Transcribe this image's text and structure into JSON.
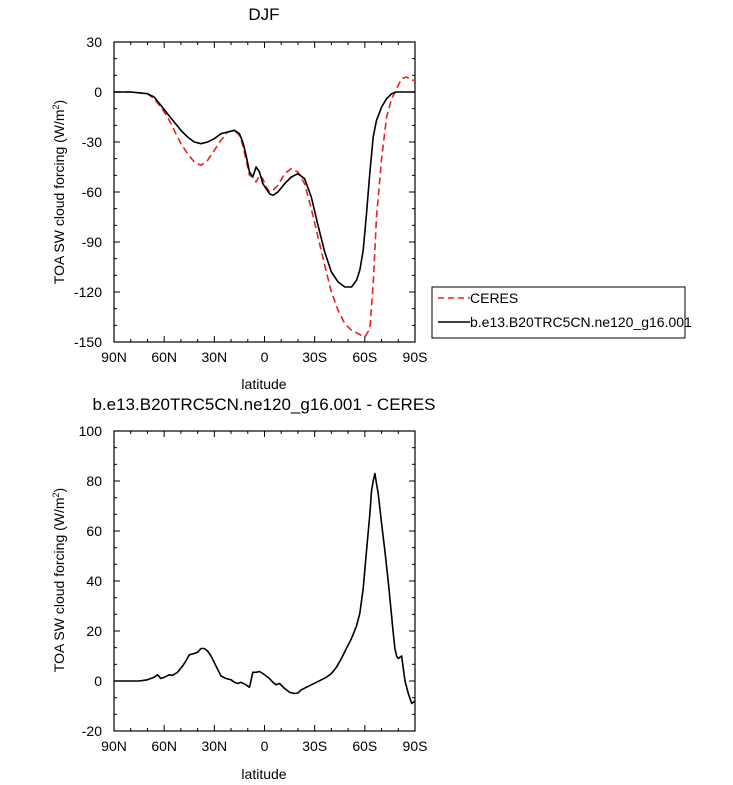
{
  "chart_data": [
    {
      "type": "line",
      "title": "DJF",
      "xlabel": "latitude",
      "ylabel": "TOA SW cloud forcing (W/m²)",
      "xlim": [
        -90,
        90
      ],
      "ylim": [
        -150,
        30
      ],
      "x_ticks": [
        -90,
        -60,
        -30,
        0,
        30,
        60,
        90
      ],
      "x_tick_labels": [
        "90N",
        "60N",
        "30N",
        "0",
        "30S",
        "60S",
        "90S"
      ],
      "y_ticks": [
        30,
        0,
        -30,
        -60,
        -90,
        -120,
        -150
      ],
      "y_tick_labels": [
        "30",
        "0",
        "-30",
        "-60",
        "-90",
        "-120",
        "-150"
      ],
      "legend": {
        "placement": "outside-right"
      },
      "series": [
        {
          "name": "CERES",
          "color": "#e8221f",
          "dash": "dashed",
          "x": [
            -90,
            -80,
            -70,
            -66,
            -62,
            -58,
            -54,
            -50,
            -46,
            -42,
            -38,
            -34,
            -30,
            -26,
            -22,
            -18,
            -15,
            -13,
            -11,
            -9,
            -7,
            -5,
            -3,
            -1,
            1,
            3,
            5,
            8,
            12,
            16,
            20,
            24,
            28,
            32,
            36,
            40,
            44,
            48,
            52,
            56,
            60,
            63,
            65,
            67,
            70,
            73,
            76,
            79,
            82,
            85,
            88,
            90
          ],
          "y": [
            0,
            0,
            -1,
            -4,
            -9,
            -15,
            -23,
            -31,
            -37,
            -42,
            -44,
            -41,
            -35,
            -29,
            -24,
            -23,
            -26,
            -32,
            -41,
            -50,
            -51,
            -54,
            -50,
            -52,
            -57,
            -60,
            -59,
            -56,
            -49,
            -46,
            -48,
            -55,
            -70,
            -87,
            -104,
            -120,
            -131,
            -139,
            -143,
            -145,
            -147,
            -142,
            -115,
            -75,
            -40,
            -15,
            -4,
            2,
            8,
            9,
            7,
            7
          ]
        },
        {
          "name": "b.e13.B20TRC5CN.ne120_g16.001",
          "color": "#000000",
          "dash": "solid",
          "x": [
            -90,
            -80,
            -70,
            -66,
            -62,
            -58,
            -54,
            -50,
            -46,
            -42,
            -38,
            -34,
            -30,
            -26,
            -22,
            -18,
            -15,
            -13,
            -11,
            -9,
            -7,
            -5,
            -3,
            -1,
            1,
            3,
            5,
            8,
            12,
            16,
            20,
            24,
            28,
            32,
            36,
            40,
            44,
            48,
            52,
            55,
            57,
            59,
            61,
            63,
            65,
            67,
            70,
            73,
            76,
            79,
            82,
            85,
            88,
            90
          ],
          "y": [
            0,
            0,
            -1,
            -3,
            -8,
            -13,
            -18,
            -23,
            -27,
            -30,
            -31,
            -30,
            -28,
            -25,
            -24,
            -23,
            -25,
            -30,
            -38,
            -48,
            -51,
            -45,
            -48,
            -55,
            -58,
            -61,
            -62,
            -60,
            -55,
            -51,
            -49,
            -52,
            -63,
            -80,
            -96,
            -108,
            -114,
            -117,
            -117,
            -113,
            -107,
            -95,
            -73,
            -48,
            -27,
            -17,
            -9,
            -4,
            -1,
            0,
            0,
            0,
            0,
            0
          ]
        }
      ]
    },
    {
      "type": "line",
      "title": "b.e13.B20TRC5CN.ne120_g16.001 - CERES",
      "xlabel": "latitude",
      "ylabel": "TOA SW cloud forcing (W/m²)",
      "xlim": [
        -90,
        90
      ],
      "ylim": [
        -20,
        100
      ],
      "x_ticks": [
        -90,
        -60,
        -30,
        0,
        30,
        60,
        90
      ],
      "x_tick_labels": [
        "90N",
        "60N",
        "30N",
        "0",
        "30S",
        "60S",
        "90S"
      ],
      "y_ticks": [
        100,
        80,
        60,
        40,
        20,
        0,
        -20
      ],
      "y_tick_labels": [
        "100",
        "80",
        "60",
        "40",
        "20",
        "0",
        "-20"
      ],
      "series": [
        {
          "name": "",
          "color": "#000000",
          "dash": "solid",
          "x": [
            -90,
            -80,
            -75,
            -70,
            -66,
            -64,
            -62,
            -60,
            -57,
            -55,
            -52,
            -49,
            -47,
            -45,
            -42,
            -40,
            -38,
            -36,
            -34,
            -32,
            -29,
            -26,
            -23,
            -20,
            -18,
            -16,
            -14,
            -11,
            -9,
            -7,
            -5,
            -3,
            -1,
            1,
            3,
            5,
            7,
            9,
            12,
            15,
            18,
            20,
            22,
            25,
            28,
            31,
            34,
            37,
            40,
            43,
            46,
            49,
            52,
            55,
            57,
            59,
            61,
            63,
            64,
            65,
            66,
            67,
            68,
            70,
            72,
            74,
            76,
            77,
            78,
            79,
            80,
            82,
            84,
            86,
            88,
            90
          ],
          "y": [
            0,
            0,
            0,
            0.5,
            1.5,
            2.5,
            1,
            1.5,
            2.5,
            2.3,
            3.5,
            6,
            8,
            10.5,
            11,
            11.5,
            13,
            13,
            12,
            10,
            6,
            2,
            1,
            0.5,
            -0.5,
            -1,
            -0.5,
            -1.5,
            -2.5,
            3.5,
            3.5,
            3.8,
            3,
            2,
            1,
            -0.5,
            -1.5,
            -1,
            -3,
            -4.5,
            -5,
            -4.8,
            -3.5,
            -2.5,
            -1.5,
            -0.5,
            0.5,
            1.5,
            3,
            5.5,
            9,
            13,
            17,
            22,
            27,
            37,
            52,
            67,
            76,
            80,
            83,
            79,
            75,
            63,
            52,
            40,
            26,
            19,
            13,
            10,
            9,
            10,
            0,
            -5,
            -9,
            -8
          ]
        }
      ]
    }
  ]
}
